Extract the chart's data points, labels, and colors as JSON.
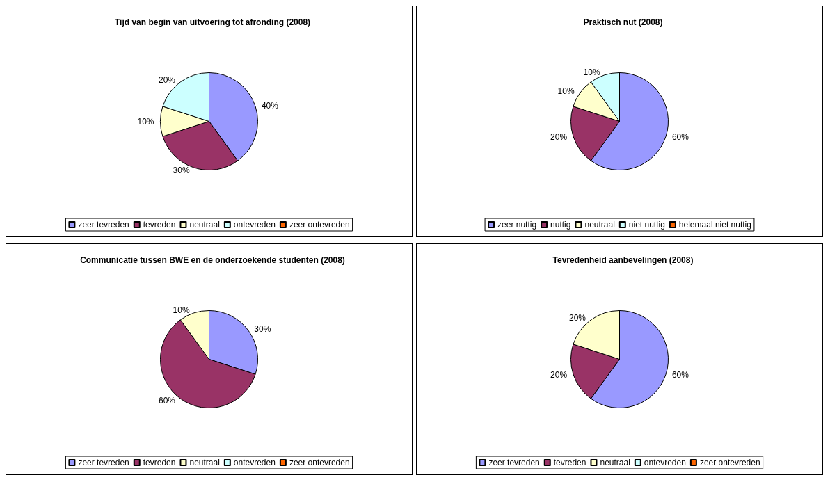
{
  "chart_data": [
    {
      "type": "pie",
      "title": "Tijd van begin van uitvoering tot afronding (2008)",
      "categories": [
        "zeer tevreden",
        "tevreden",
        "neutraal",
        "ontevreden",
        "zeer ontevreden"
      ],
      "values": [
        40,
        30,
        10,
        20,
        0
      ],
      "value_labels": [
        "40%",
        "30%",
        "10%",
        "20%",
        null
      ],
      "colors": [
        "#9999ff",
        "#993366",
        "#ffffcc",
        "#ccffff",
        "#ff6600"
      ],
      "legend": "bottom"
    },
    {
      "type": "pie",
      "title": "Praktisch nut (2008)",
      "categories": [
        "zeer nuttig",
        "nuttig",
        "neutraal",
        "niet nuttig",
        "helemaal niet nuttig"
      ],
      "values": [
        60,
        20,
        10,
        10,
        0
      ],
      "value_labels": [
        "60%",
        "20%",
        "10%",
        "10%",
        null
      ],
      "colors": [
        "#9999ff",
        "#993366",
        "#ffffcc",
        "#ccffff",
        "#ff6600"
      ],
      "legend": "bottom"
    },
    {
      "type": "pie",
      "title": "Communicatie tussen BWE en de onderzoekende studenten (2008)",
      "categories": [
        "zeer tevreden",
        "tevreden",
        "neutraal",
        "ontevreden",
        "zeer ontevreden"
      ],
      "values": [
        30,
        60,
        10,
        0,
        0
      ],
      "value_labels": [
        "30%",
        "60%",
        "10%",
        null,
        null
      ],
      "colors": [
        "#9999ff",
        "#993366",
        "#ffffcc",
        "#ccffff",
        "#ff6600"
      ],
      "legend": "bottom"
    },
    {
      "type": "pie",
      "title": "Tevredenheid aanbevelingen (2008)",
      "categories": [
        "zeer tevreden",
        "tevreden",
        "neutraal",
        "ontevreden",
        "zeer ontevreden"
      ],
      "values": [
        60,
        20,
        20,
        0,
        0
      ],
      "value_labels": [
        "60%",
        "20%",
        "20%",
        null,
        null
      ],
      "colors": [
        "#9999ff",
        "#993366",
        "#ffffcc",
        "#ccffff",
        "#ff6600"
      ],
      "legend": "bottom"
    }
  ]
}
